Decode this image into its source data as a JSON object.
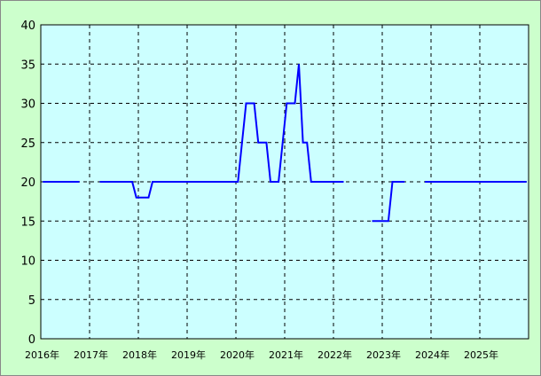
{
  "chart_data": {
    "type": "line",
    "title": "",
    "xlabel": "",
    "ylabel": "",
    "ylim": [
      0,
      40
    ],
    "yticks": [
      "0",
      "5",
      "10",
      "15",
      "20",
      "25",
      "30",
      "35",
      "40"
    ],
    "xticks": [
      "2016年",
      "2017年",
      "2018年",
      "2019年",
      "2020年",
      "2021年",
      "2022年",
      "2023年",
      "2024年",
      "2025年"
    ],
    "x_start": "2016-01",
    "x_end": "2026-01",
    "x_interval": "monthly",
    "grid": true,
    "colors": {
      "line": "#0000ff",
      "plot_bg": "#ccffff",
      "page_bg": "#ccffcc"
    },
    "series": [
      {
        "values": [
          20,
          20,
          20,
          20,
          20,
          20,
          20,
          20,
          20,
          20,
          null,
          null,
          null,
          null,
          20,
          20,
          20,
          20,
          20,
          20,
          20,
          20,
          20,
          18,
          18,
          18,
          18,
          20,
          20,
          20,
          20,
          20,
          20,
          20,
          20,
          20,
          20,
          20,
          20,
          20,
          20,
          20,
          20,
          20,
          20,
          20,
          20,
          20,
          20,
          25,
          30,
          30,
          30,
          25,
          25,
          25,
          20,
          20,
          20,
          25,
          30,
          30,
          30,
          35,
          25,
          25,
          20,
          20,
          20,
          20,
          20,
          20,
          20,
          20,
          20,
          null,
          null,
          null,
          null,
          null,
          null,
          15,
          15,
          15,
          15,
          15,
          20,
          20,
          20,
          20,
          null,
          null,
          null,
          null,
          20,
          20,
          20,
          20,
          20,
          20,
          20,
          20,
          20,
          20,
          20,
          20,
          20,
          20,
          20,
          20,
          20,
          20,
          20,
          20,
          20,
          20,
          20,
          20,
          20,
          20
        ]
      }
    ]
  }
}
